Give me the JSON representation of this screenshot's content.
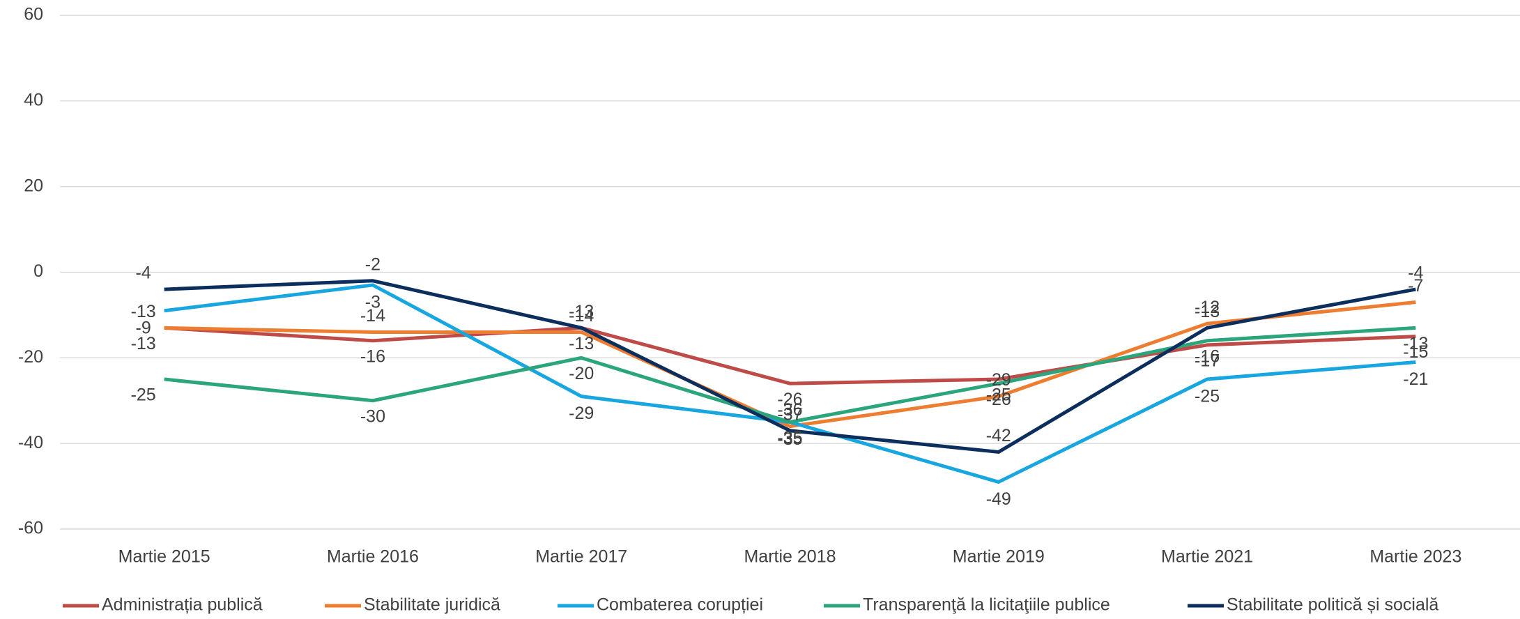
{
  "chart_data": {
    "type": "line",
    "categories": [
      "Martie 2015",
      "Martie 2016",
      "Martie 2017",
      "Martie 2018",
      "Martie 2019",
      "Martie 2021",
      "Martie 2023"
    ],
    "series": [
      {
        "name": "Administrația publică",
        "color": "#be4b48",
        "values": [
          -13,
          -16,
          -13,
          -26,
          -25,
          -17,
          -15
        ]
      },
      {
        "name": "Stabilitate juridică",
        "color": "#ed7d31",
        "values": [
          -13,
          -14,
          -14,
          -36,
          -29,
          -12,
          -7
        ]
      },
      {
        "name": "Combaterea corupției",
        "color": "#17a6e0",
        "values": [
          -9,
          -3,
          -29,
          -35,
          -49,
          -25,
          -21
        ]
      },
      {
        "name": "Transparenţă la licitaţiile publice",
        "color": "#2ba57b",
        "values": [
          -25,
          -30,
          -20,
          -35,
          -26,
          -16,
          -13
        ]
      },
      {
        "name": "Stabilitate politică și socială",
        "color": "#0c2e5c",
        "values": [
          -4,
          -2,
          -13,
          -37,
          -42,
          -13,
          -4
        ]
      }
    ],
    "ylim": [
      -60,
      60
    ],
    "yticks": [
      -60,
      -40,
      -20,
      0,
      20,
      40,
      60
    ],
    "grid": true,
    "legend": "bottom"
  }
}
